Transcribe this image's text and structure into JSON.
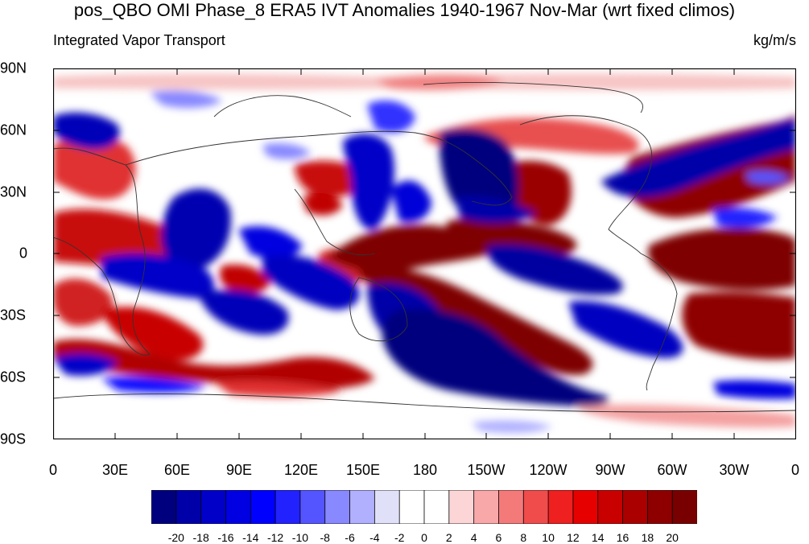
{
  "title": "pos_QBO OMI Phase_8 ERA5 IVT Anomalies 1940-1967 Nov-Mar (wrt fixed climos)",
  "left_label": "Integrated Vapor Transport",
  "right_label": "kg/m/s",
  "y_ticks": [
    "90N",
    "60N",
    "30N",
    "0",
    "30S",
    "60S",
    "90S"
  ],
  "x_ticks": [
    "0",
    "30E",
    "60E",
    "90E",
    "120E",
    "150E",
    "180",
    "150W",
    "120W",
    "90W",
    "60W",
    "30W",
    "0"
  ],
  "colorbar": {
    "labels": [
      "-20",
      "-18",
      "-16",
      "-14",
      "-12",
      "-10",
      "-8",
      "-6",
      "-4",
      "-2",
      "0",
      "2",
      "4",
      "6",
      "8",
      "10",
      "12",
      "14",
      "16",
      "18",
      "20"
    ],
    "colors": [
      "#00007e",
      "#0000a8",
      "#0000c8",
      "#0000e2",
      "#0000ff",
      "#2222ff",
      "#5555ff",
      "#8888ff",
      "#b0b0ff",
      "#e0e0f8",
      "#ffffff",
      "#ffffff",
      "#fcd6d6",
      "#f8a8a8",
      "#f47a7a",
      "#f04c4c",
      "#ee2020",
      "#e60000",
      "#c80000",
      "#aa0000",
      "#8e0000",
      "#780000"
    ]
  },
  "chart_data": {
    "type": "heatmap",
    "title": "pos_QBO OMI Phase_8 ERA5 IVT Anomalies 1940-1967 Nov-Mar (wrt fixed climos)",
    "variable": "Integrated Vapor Transport",
    "units": "kg/m/s",
    "lon_range": [
      0,
      360
    ],
    "lat_range": [
      -90,
      90
    ],
    "contour_levels": [
      -20,
      -18,
      -16,
      -14,
      -12,
      -10,
      -8,
      -6,
      -4,
      -2,
      0,
      2,
      4,
      6,
      8,
      10,
      12,
      14,
      16,
      18,
      20
    ]
  }
}
